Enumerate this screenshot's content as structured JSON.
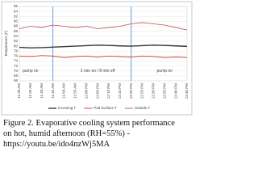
{
  "chart_data": {
    "type": "line",
    "y_label": "Temperature (F)",
    "categories": [
      "11:30 AM",
      "11:35 AM",
      "11:40 AM",
      "11:45 AM",
      "11:50 AM",
      "11:55 AM",
      "12:00 PM",
      "12:05 PM",
      "12:10 PM",
      "12:15 PM",
      "12:20 PM",
      "12:25 PM",
      "12:30 PM",
      "12:35 PM",
      "12:40 PM",
      "12:45 PM"
    ],
    "series": [
      {
        "name": "Incoming T",
        "color": "#3a3a3a",
        "values": [
          79.5,
          79.3,
          79.4,
          79.6,
          79.8,
          80,
          80.2,
          80.4,
          80.3,
          80.1,
          80,
          80.2,
          80.4,
          80.3,
          80.1,
          79.9
        ]
      },
      {
        "name": "Pad Surface T",
        "color": "#d9302c",
        "values": [
          76,
          75.8,
          76.2,
          76,
          75.4,
          75.8,
          76,
          75.6,
          76,
          75.8,
          75.6,
          76,
          75.8,
          75.4,
          75.6,
          75.4
        ]
      },
      {
        "name": "Outside T",
        "color": "#c0504d",
        "values": [
          87,
          88,
          87.5,
          88.5,
          88,
          87.5,
          88,
          87,
          87.5,
          88,
          89,
          89.5,
          89,
          88.5,
          87.5,
          86.5
        ]
      }
    ],
    "ylim": [
      66,
      96
    ],
    "yticks": [
      66,
      68,
      70,
      72,
      74,
      76,
      78,
      80,
      82,
      84,
      86,
      88,
      90,
      92,
      94,
      96
    ],
    "grid": true,
    "vlines_at": [
      "11:45 AM",
      "12:20 PM"
    ],
    "annotations": [
      {
        "text": "pump on",
        "x": "11:35 AM",
        "y": 70
      },
      {
        "text": "2 min on / 8 min off",
        "x": "12:05 PM",
        "y": 70
      },
      {
        "text": "pump on",
        "x": "12:35 PM",
        "y": 70
      }
    ]
  },
  "caption": "Figure 2.  Evaporative cooling system performance on hot, humid afternoon (RH=55%) - https://youtu.be/ido4nzWj5MA"
}
